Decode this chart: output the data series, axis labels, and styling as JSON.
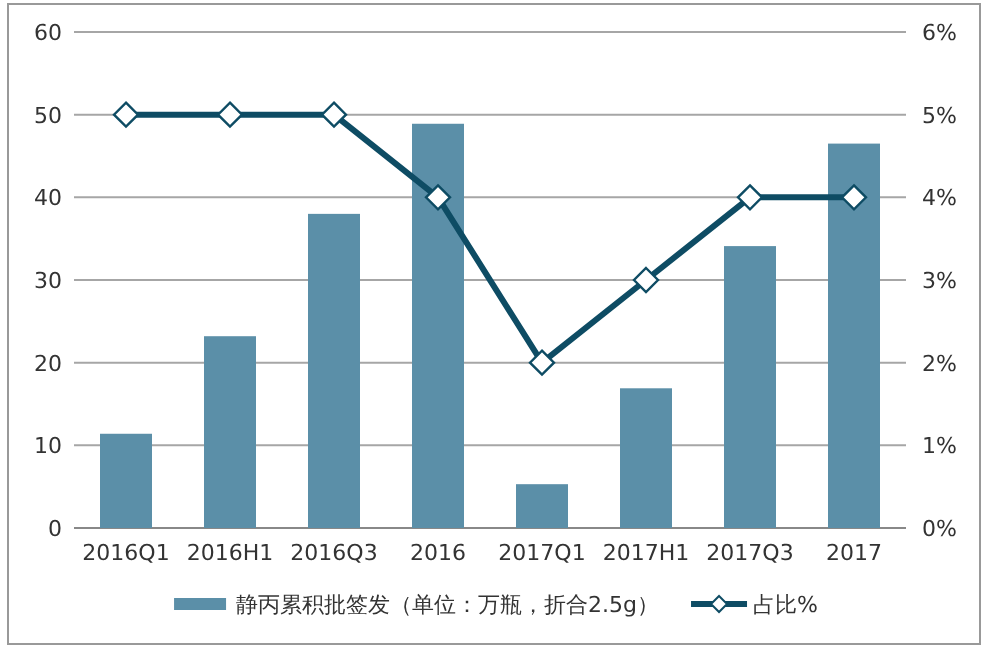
{
  "chart_data": {
    "type": "bar",
    "categories": [
      "2016Q1",
      "2016H1",
      "2016Q3",
      "2016",
      "2017Q1",
      "2017H1",
      "2017Q3",
      "2017"
    ],
    "series": [
      {
        "name": "静丙累积批签发（单位：万瓶，折合2.5g）",
        "color": "#5b8fa8",
        "values": [
          11.4,
          23.2,
          38.0,
          48.9,
          5.3,
          16.9,
          34.1,
          46.5
        ]
      },
      {
        "name": "占比%",
        "type": "line",
        "axis": "y2",
        "color": "#0e4c64",
        "marker": "diamond",
        "values": [
          5,
          5,
          5,
          4,
          2,
          3,
          4,
          4
        ]
      }
    ],
    "ylim": [
      0,
      60
    ],
    "yticks": [
      0,
      10,
      20,
      30,
      40,
      50,
      60
    ],
    "y2lim": [
      0,
      6
    ],
    "y2ticks": [
      {
        "value": 0,
        "label": "0%"
      },
      {
        "value": 1,
        "label": "1%"
      },
      {
        "value": 2,
        "label": "2%"
      },
      {
        "value": 3,
        "label": "3%"
      },
      {
        "value": 4,
        "label": "4%"
      },
      {
        "value": 5,
        "label": "5%"
      },
      {
        "value": 6,
        "label": "6%"
      }
    ],
    "grid": "y",
    "legend": "bottom"
  }
}
